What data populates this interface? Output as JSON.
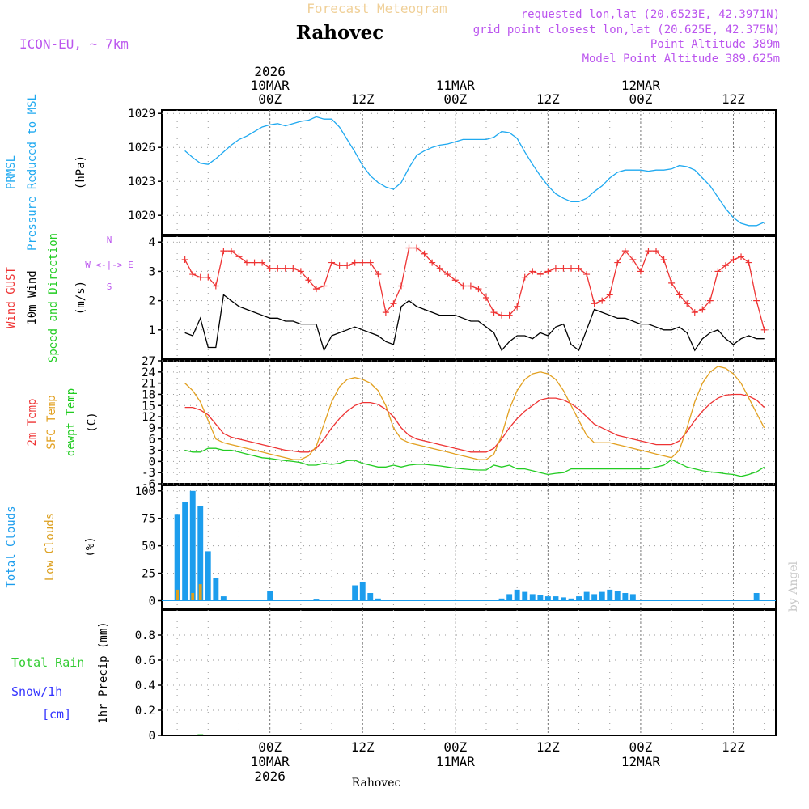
{
  "header": {
    "title": "Forecast Meteogram",
    "location": "Rahovec",
    "model": "ICON-EU, ~ 7km",
    "requested": "requested lon,lat (20.6523E, 42.3971N)",
    "grid_point": "grid point closest lon,lat (20.625E, 42.375N)",
    "point_altitude": "Point Altitude 389m",
    "model_altitude": "Model Point Altitude 389.625m",
    "credit": "by Angel",
    "footer_location": "Rahovec"
  },
  "time_axis": {
    "top_labels": [
      {
        "hour": 12,
        "lines": [
          "2026",
          "10MAR",
          "00Z"
        ]
      },
      {
        "hour": 24,
        "lines": [
          "12Z"
        ]
      },
      {
        "hour": 36,
        "lines": [
          "11MAR",
          "00Z"
        ]
      },
      {
        "hour": 48,
        "lines": [
          "12Z"
        ]
      },
      {
        "hour": 60,
        "lines": [
          "12MAR",
          "00Z"
        ]
      },
      {
        "hour": 72,
        "lines": [
          "12Z"
        ]
      }
    ],
    "bottom_labels": [
      {
        "hour": 12,
        "lines": [
          "00Z",
          "10MAR",
          "2026"
        ]
      },
      {
        "hour": 24,
        "lines": [
          "12Z"
        ]
      },
      {
        "hour": 36,
        "lines": [
          "00Z",
          "11MAR"
        ]
      },
      {
        "hour": 48,
        "lines": [
          "12Z"
        ]
      },
      {
        "hour": 60,
        "lines": [
          "00Z",
          "12MAR"
        ]
      },
      {
        "hour": 72,
        "lines": [
          "12Z"
        ]
      }
    ]
  },
  "colors": {
    "pressure": "#1fa9f0",
    "gust": "#ee3333",
    "wind": "#000000",
    "temp": "#ee3333",
    "sfc": "#e2a020",
    "dewpt": "#22cc22",
    "total_clouds": "#1c9ded",
    "low_clouds": "#dca020",
    "rain": "#33cc33",
    "snow": "#3333ff",
    "header_title": "#f0d098",
    "purple": "#bb55ee"
  },
  "chart_data": [
    {
      "type": "line",
      "panel": "pressure",
      "ylabel_lines": [
        "PRMSL",
        "Pressure Reduced to MSL",
        "(hPa)"
      ],
      "ylim": [
        1018.3,
        1029.3
      ],
      "yticks": [
        1020,
        1023,
        1026,
        1029
      ],
      "x_hours": [
        1,
        2,
        3,
        4,
        5,
        6,
        7,
        8,
        9,
        10,
        11,
        12,
        13,
        14,
        15,
        16,
        17,
        18,
        19,
        20,
        21,
        22,
        23,
        24,
        25,
        26,
        27,
        28,
        29,
        30,
        31,
        32,
        33,
        34,
        35,
        36,
        37,
        38,
        39,
        40,
        41,
        42,
        43,
        44,
        45,
        46,
        47,
        48,
        49,
        50,
        51,
        52,
        53,
        54,
        55,
        56,
        57,
        58,
        59,
        60,
        61,
        62,
        63,
        64,
        65,
        66,
        67,
        68,
        69,
        70,
        71,
        72,
        73,
        74,
        75,
        76
      ],
      "series": [
        {
          "name": "PRMSL",
          "values": [
            1025.7,
            1025.1,
            1024.6,
            1024.5,
            1025.0,
            1025.6,
            1026.2,
            1026.7,
            1027.0,
            1027.4,
            1027.8,
            1028.0,
            1028.1,
            1027.9,
            1028.1,
            1028.3,
            1028.4,
            1028.7,
            1028.5,
            1028.5,
            1027.8,
            1026.7,
            1025.6,
            1024.4,
            1023.5,
            1022.9,
            1022.5,
            1022.3,
            1022.9,
            1024.2,
            1025.3,
            1025.7,
            1026.0,
            1026.2,
            1026.3,
            1026.5,
            1026.7,
            1026.7,
            1026.7,
            1026.7,
            1026.9,
            1027.4,
            1027.3,
            1026.8,
            1025.6,
            1024.5,
            1023.5,
            1022.6,
            1021.9,
            1021.5,
            1021.2,
            1021.2,
            1021.5,
            1022.1,
            1022.6,
            1023.3,
            1023.8,
            1024.0,
            1024.0,
            1024.0,
            1023.9,
            1024.0,
            1024.0,
            1024.1,
            1024.4,
            1024.3,
            1024.0,
            1023.3,
            1022.6,
            1021.6,
            1020.6,
            1019.8,
            1019.3,
            1019.1,
            1019.1,
            1019.4
          ]
        }
      ]
    },
    {
      "type": "line",
      "panel": "wind",
      "ylabel_lines": [
        "Wind GUST",
        "10m Wind",
        "Speed and Direction",
        "(m/s)"
      ],
      "compass": [
        "N",
        "W <-|-> E",
        "S"
      ],
      "ylim": [
        0,
        4.2
      ],
      "yticks": [
        1,
        2,
        3,
        4
      ],
      "x_hours": [
        1,
        2,
        3,
        4,
        5,
        6,
        7,
        8,
        9,
        10,
        11,
        12,
        13,
        14,
        15,
        16,
        17,
        18,
        19,
        20,
        21,
        22,
        23,
        24,
        25,
        26,
        27,
        28,
        29,
        30,
        31,
        32,
        33,
        34,
        35,
        36,
        37,
        38,
        39,
        40,
        41,
        42,
        43,
        44,
        45,
        46,
        47,
        48,
        49,
        50,
        51,
        52,
        53,
        54,
        55,
        56,
        57,
        58,
        59,
        60,
        61,
        62,
        63,
        64,
        65,
        66,
        67,
        68,
        69,
        70,
        71,
        72,
        73,
        74,
        75,
        76
      ],
      "series": [
        {
          "name": "Wind GUST",
          "values": [
            3.4,
            2.9,
            2.8,
            2.8,
            2.5,
            3.7,
            3.7,
            3.5,
            3.3,
            3.3,
            3.3,
            3.1,
            3.1,
            3.1,
            3.1,
            3.0,
            2.7,
            2.4,
            2.5,
            3.3,
            3.2,
            3.2,
            3.3,
            3.3,
            3.3,
            2.9,
            1.6,
            1.9,
            2.5,
            3.8,
            3.8,
            3.6,
            3.3,
            3.1,
            2.9,
            2.7,
            2.5,
            2.5,
            2.4,
            2.1,
            1.6,
            1.5,
            1.5,
            1.8,
            2.8,
            3.0,
            2.9,
            3.0,
            3.1,
            3.1,
            3.1,
            3.1,
            2.9,
            1.9,
            2.0,
            2.2,
            3.3,
            3.7,
            3.4,
            3.0,
            3.7,
            3.7,
            3.4,
            2.6,
            2.2,
            1.9,
            1.6,
            1.7,
            2.0,
            3.0,
            3.2,
            3.4,
            3.5,
            3.3,
            2.0,
            1.0
          ]
        },
        {
          "name": "10m Wind",
          "values": [
            0.9,
            0.8,
            1.4,
            0.4,
            0.4,
            2.2,
            2.0,
            1.8,
            1.7,
            1.6,
            1.5,
            1.4,
            1.4,
            1.3,
            1.3,
            1.2,
            1.2,
            1.2,
            0.3,
            0.8,
            0.9,
            1.0,
            1.1,
            1.0,
            0.9,
            0.8,
            0.6,
            0.5,
            1.8,
            2.0,
            1.8,
            1.7,
            1.6,
            1.5,
            1.5,
            1.5,
            1.4,
            1.3,
            1.3,
            1.1,
            0.9,
            0.3,
            0.6,
            0.8,
            0.8,
            0.7,
            0.9,
            0.8,
            1.1,
            1.2,
            0.5,
            0.3,
            1.0,
            1.7,
            1.6,
            1.5,
            1.4,
            1.4,
            1.3,
            1.2,
            1.2,
            1.1,
            1.0,
            1.0,
            1.1,
            0.9,
            0.3,
            0.7,
            0.9,
            1.0,
            0.7,
            0.5,
            0.7,
            0.8,
            0.7,
            0.7
          ]
        }
      ]
    },
    {
      "type": "line",
      "panel": "temperature",
      "ylabel_lines": [
        "2m Temp",
        "SFC Temp",
        "dewpt Temp",
        "(C)"
      ],
      "ylim": [
        -6,
        27
      ],
      "yticks": [
        -6,
        -3,
        0,
        3,
        6,
        9,
        12,
        15,
        18,
        21,
        24,
        27
      ],
      "x_hours": [
        1,
        2,
        3,
        4,
        5,
        6,
        7,
        8,
        9,
        10,
        11,
        12,
        13,
        14,
        15,
        16,
        17,
        18,
        19,
        20,
        21,
        22,
        23,
        24,
        25,
        26,
        27,
        28,
        29,
        30,
        31,
        32,
        33,
        34,
        35,
        36,
        37,
        38,
        39,
        40,
        41,
        42,
        43,
        44,
        45,
        46,
        47,
        48,
        49,
        50,
        51,
        52,
        53,
        54,
        55,
        56,
        57,
        58,
        59,
        60,
        61,
        62,
        63,
        64,
        65,
        66,
        67,
        68,
        69,
        70,
        71,
        72,
        73,
        74,
        75,
        76
      ],
      "series": [
        {
          "name": "2m Temp",
          "values": [
            14.5,
            14.5,
            13.8,
            12.5,
            10.0,
            7.5,
            6.5,
            6.0,
            5.5,
            5.0,
            4.5,
            4.0,
            3.5,
            3.0,
            2.8,
            2.5,
            2.5,
            3.5,
            6.0,
            9.0,
            11.5,
            13.5,
            15.0,
            15.8,
            15.8,
            15.3,
            14.0,
            12.0,
            9.0,
            7.0,
            6.0,
            5.5,
            5.0,
            4.5,
            4.0,
            3.5,
            3.0,
            2.5,
            2.5,
            2.5,
            3.5,
            6.0,
            9.0,
            11.5,
            13.5,
            15.0,
            16.5,
            17.0,
            17.0,
            16.5,
            15.5,
            14.0,
            12.0,
            10.0,
            9.0,
            8.0,
            7.0,
            6.5,
            6.0,
            5.5,
            5.0,
            4.5,
            4.5,
            4.5,
            5.5,
            8.0,
            11.0,
            13.5,
            15.5,
            17.0,
            17.8,
            18.0,
            18.0,
            17.5,
            16.5,
            14.5
          ]
        },
        {
          "name": "SFC Temp",
          "values": [
            21.0,
            19.0,
            16.0,
            11.0,
            6.0,
            5.0,
            4.5,
            4.0,
            3.5,
            3.0,
            2.5,
            2.0,
            1.5,
            1.0,
            0.5,
            0.5,
            1.5,
            4.0,
            10.0,
            16.0,
            20.0,
            22.0,
            22.5,
            22.0,
            21.0,
            19.0,
            15.0,
            9.0,
            6.0,
            5.0,
            4.5,
            4.0,
            3.5,
            3.0,
            2.5,
            2.0,
            1.5,
            1.0,
            0.5,
            0.5,
            2.0,
            7.0,
            14.0,
            19.0,
            22.0,
            23.5,
            24.0,
            23.5,
            22.0,
            19.0,
            15.0,
            11.0,
            7.0,
            5.0,
            5.0,
            5.0,
            4.5,
            4.0,
            3.5,
            3.0,
            2.5,
            2.0,
            1.5,
            1.0,
            3.0,
            9.0,
            16.0,
            21.0,
            24.0,
            25.5,
            25.0,
            23.5,
            21.0,
            17.0,
            13.0,
            9.0
          ]
        },
        {
          "name": "dewpt Temp",
          "values": [
            3.0,
            2.5,
            2.5,
            3.5,
            3.5,
            3.0,
            3.0,
            2.5,
            2.0,
            1.5,
            1.0,
            0.8,
            0.5,
            0.2,
            0.0,
            -0.3,
            -1.0,
            -1.0,
            -0.5,
            -0.8,
            -0.5,
            0.2,
            0.3,
            -0.5,
            -1.0,
            -1.5,
            -1.5,
            -1.0,
            -1.5,
            -1.0,
            -0.8,
            -0.8,
            -1.0,
            -1.2,
            -1.5,
            -1.8,
            -2.0,
            -2.2,
            -2.3,
            -2.3,
            -1.0,
            -1.5,
            -1.0,
            -2.0,
            -2.0,
            -2.5,
            -3.0,
            -3.5,
            -3.2,
            -3.0,
            -2.0,
            -2.0,
            -2.0,
            -2.0,
            -2.0,
            -2.0,
            -2.0,
            -2.0,
            -2.0,
            -2.0,
            -2.0,
            -1.5,
            -1.0,
            0.5,
            -0.5,
            -1.5,
            -2.0,
            -2.5,
            -2.8,
            -3.0,
            -3.3,
            -3.5,
            -4.0,
            -3.5,
            -2.8,
            -1.5
          ]
        }
      ]
    },
    {
      "type": "bar",
      "panel": "clouds",
      "ylabel_lines": [
        "Total Clouds",
        "Low Clouds",
        "(%)"
      ],
      "ylim": [
        -7,
        105
      ],
      "yticks": [
        0,
        25,
        50,
        75,
        100
      ],
      "x_hours": [
        0,
        1,
        2,
        3,
        4,
        5,
        6,
        12,
        18,
        23,
        24,
        25,
        26,
        42,
        43,
        44,
        45,
        46,
        47,
        48,
        49,
        50,
        51,
        52,
        53,
        54,
        55,
        56,
        57,
        58,
        59,
        75
      ],
      "series": [
        {
          "name": "Total Clouds",
          "values": [
            79,
            90,
            100,
            86,
            45,
            21,
            4,
            9,
            1,
            14,
            17,
            7,
            2,
            2,
            6,
            10,
            8,
            6,
            5,
            4,
            4,
            3,
            2,
            4,
            8,
            6,
            8,
            10,
            9,
            7,
            6,
            7
          ]
        },
        {
          "name": "Low Clouds",
          "values": [
            10,
            0,
            7,
            15,
            0,
            0,
            0,
            0,
            0,
            0,
            0,
            0,
            0,
            0,
            0,
            0,
            0,
            0,
            0,
            0,
            0,
            0,
            0,
            0,
            0,
            0,
            0,
            0,
            0,
            0,
            0,
            0
          ]
        }
      ]
    },
    {
      "type": "bar",
      "panel": "precip",
      "ylabel_lines": [
        "1hr Precip (mm)"
      ],
      "legend_lines": [
        "Total Rain",
        "Snow/1h",
        "[cm]"
      ],
      "ylim": [
        0,
        1.0
      ],
      "yticks": [
        0,
        0.2,
        0.4,
        0.6,
        0.8
      ],
      "x_hours": [
        3
      ],
      "series": [
        {
          "name": "Total Rain",
          "values": [
            0.01
          ]
        }
      ]
    }
  ]
}
